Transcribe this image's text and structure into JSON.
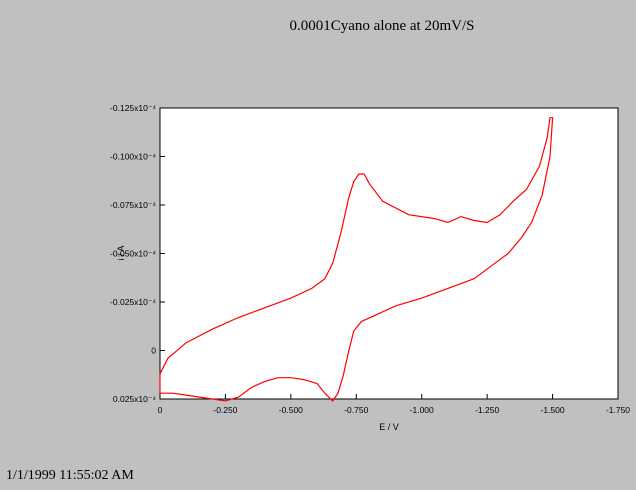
{
  "title": "0.0001Cyano alone at 20mV/S",
  "timestamp": "1/1/1999 11:55:02 AM",
  "colors": {
    "background": "#c0c0c0",
    "plot_background": "#ffffff",
    "trace": "#ff0000"
  },
  "chart_data": {
    "type": "line",
    "title": "0.0001Cyano alone at 20mV/S",
    "xlabel": "E / V",
    "ylabel": "i / A",
    "xlim": [
      0,
      -1.75
    ],
    "ylim": [
      0.025,
      -0.125
    ],
    "y_unit_suffix": "x10⁻⁴",
    "x_ticks": [
      0,
      -0.25,
      -0.5,
      -0.75,
      -1.0,
      -1.25,
      -1.5,
      -1.75
    ],
    "x_tick_labels": [
      "0",
      "-0.250",
      "-0.500",
      "-0.750",
      "-1.000",
      "-1.250",
      "-1.500",
      "-1.750"
    ],
    "y_ticks": [
      -0.125,
      -0.1,
      -0.075,
      -0.05,
      -0.025,
      0,
      0.025
    ],
    "y_tick_labels": [
      "-0.125x10⁻⁴",
      "-0.100x10⁻⁴",
      "-0.075x10⁻⁴",
      "-0.050x10⁻⁴",
      "-0.025x10⁻⁴",
      "0",
      "0.025x10⁻⁴"
    ],
    "grid": false,
    "series": [
      {
        "values": [
          [
            0.0,
            0.022
          ],
          [
            0.0,
            0.012
          ],
          [
            -0.03,
            0.004
          ],
          [
            -0.1,
            -0.004
          ],
          [
            -0.2,
            -0.011
          ],
          [
            -0.3,
            -0.017
          ],
          [
            -0.4,
            -0.022
          ],
          [
            -0.5,
            -0.027
          ],
          [
            -0.58,
            -0.032
          ],
          [
            -0.63,
            -0.037
          ],
          [
            -0.66,
            -0.045
          ],
          [
            -0.69,
            -0.06
          ],
          [
            -0.72,
            -0.078
          ],
          [
            -0.74,
            -0.087
          ],
          [
            -0.76,
            -0.091
          ],
          [
            -0.78,
            -0.091
          ],
          [
            -0.8,
            -0.086
          ],
          [
            -0.85,
            -0.077
          ],
          [
            -0.95,
            -0.07
          ],
          [
            -1.05,
            -0.068
          ],
          [
            -1.1,
            -0.066
          ],
          [
            -1.15,
            -0.069
          ],
          [
            -1.2,
            -0.067
          ],
          [
            -1.25,
            -0.066
          ],
          [
            -1.3,
            -0.07
          ],
          [
            -1.35,
            -0.077
          ],
          [
            -1.4,
            -0.083
          ],
          [
            -1.45,
            -0.095
          ],
          [
            -1.48,
            -0.11
          ],
          [
            -1.49,
            -0.12
          ],
          [
            -1.5,
            -0.12
          ],
          [
            -1.49,
            -0.1
          ],
          [
            -1.46,
            -0.08
          ],
          [
            -1.42,
            -0.066
          ],
          [
            -1.38,
            -0.058
          ],
          [
            -1.33,
            -0.05
          ],
          [
            -1.28,
            -0.045
          ],
          [
            -1.2,
            -0.037
          ],
          [
            -1.1,
            -0.032
          ],
          [
            -1.0,
            -0.027
          ],
          [
            -0.9,
            -0.023
          ],
          [
            -0.82,
            -0.018
          ],
          [
            -0.77,
            -0.015
          ],
          [
            -0.74,
            -0.01
          ],
          [
            -0.72,
            0.001
          ],
          [
            -0.7,
            0.013
          ],
          [
            -0.68,
            0.022
          ],
          [
            -0.66,
            0.026
          ],
          [
            -0.63,
            0.022
          ],
          [
            -0.6,
            0.017
          ],
          [
            -0.55,
            0.015
          ],
          [
            -0.5,
            0.014
          ],
          [
            -0.45,
            0.014
          ],
          [
            -0.4,
            0.016
          ],
          [
            -0.35,
            0.019
          ],
          [
            -0.3,
            0.024
          ],
          [
            -0.25,
            0.026
          ],
          [
            -0.2,
            0.025
          ],
          [
            -0.15,
            0.024
          ],
          [
            -0.1,
            0.023
          ],
          [
            -0.05,
            0.022
          ],
          [
            0.0,
            0.022
          ]
        ]
      }
    ]
  }
}
